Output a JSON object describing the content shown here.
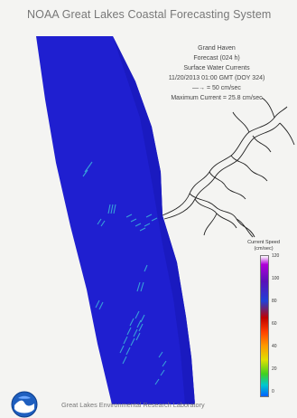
{
  "header": {
    "title": "NOAA Great Lakes Coastal Forecasting System"
  },
  "info": {
    "location": "Grand Haven",
    "forecast": "Forecast (024 h)",
    "product": "Surface Water Currents",
    "datetime": "11/20/2013 01:00 GMT (DOY 324)",
    "reference_arrow": "—→ = 50 cm/sec",
    "max_current": "Maximum Current = 25.8 cm/sec"
  },
  "legend": {
    "title": "Current Speed (cm/sec)",
    "ticks": [
      "120",
      "100",
      "80",
      "60",
      "40",
      "20",
      "0"
    ]
  },
  "footer": {
    "lab": "Great Lakes Environmental Research Laboratory"
  },
  "colors": {
    "water": "#1f1fd0",
    "land": "#ffffff",
    "shoreline": "#222222",
    "current_vectors": "#38a0d8"
  },
  "icons": {
    "logo": "noaa-logo-icon"
  }
}
